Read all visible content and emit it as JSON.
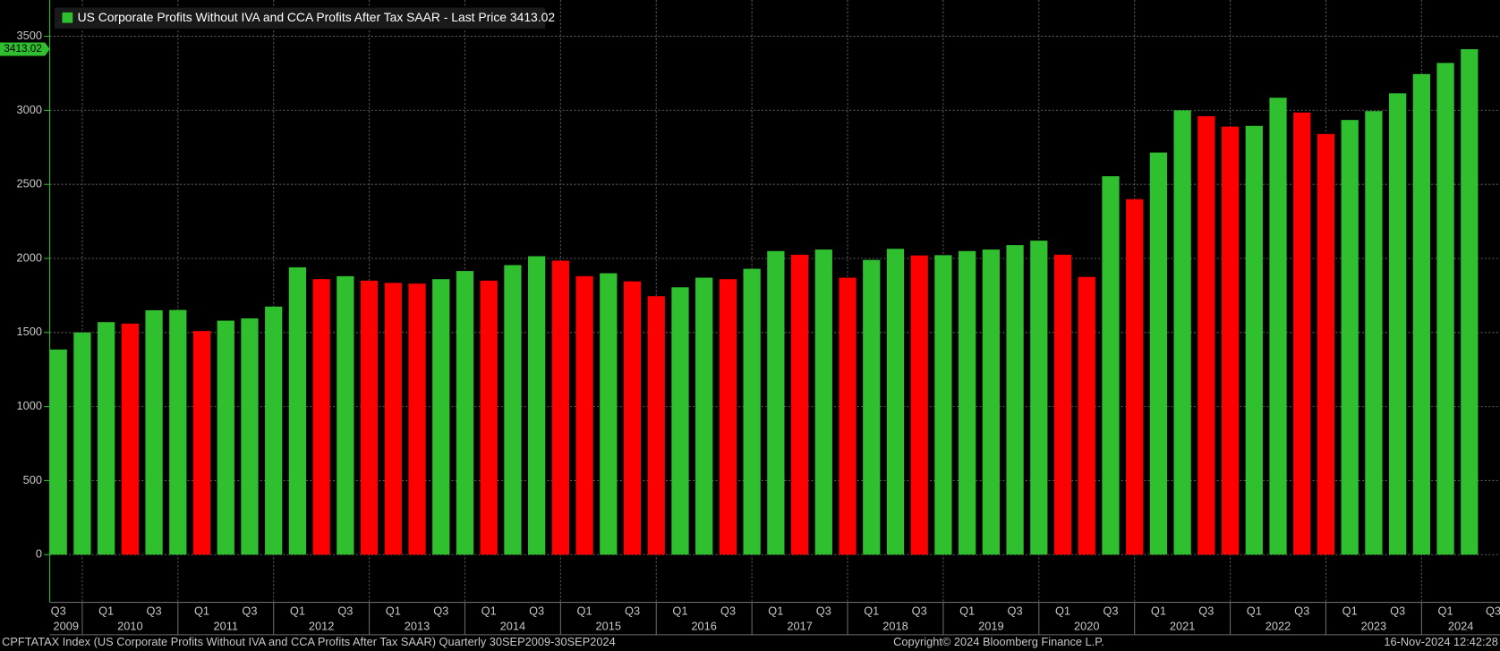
{
  "chart_data": {
    "type": "bar",
    "legend": "US Corporate Profits Without IVA and CCA Profits After Tax SAAR - Last Price 3413.02",
    "categories": [
      "Q3",
      null,
      "Q1",
      null,
      "Q3",
      null,
      "Q1",
      null,
      "Q3",
      null,
      "Q1",
      null,
      "Q3",
      null,
      "Q1",
      null,
      "Q3",
      null,
      "Q1",
      null,
      "Q3",
      null,
      "Q1",
      null,
      "Q3",
      null,
      "Q1",
      null,
      "Q3",
      null,
      "Q1",
      null,
      "Q3",
      null,
      "Q1",
      null,
      "Q3",
      null,
      "Q1",
      null,
      "Q3",
      null,
      "Q1",
      null,
      "Q3",
      null,
      "Q1",
      null,
      "Q3",
      null,
      "Q1",
      null,
      "Q3",
      null,
      "Q1",
      null,
      "Q3",
      null,
      "Q1",
      null,
      "Q3"
    ],
    "year_labels": [
      "2009",
      "2010",
      "2011",
      "2012",
      "2013",
      "2014",
      "2015",
      "2016",
      "2017",
      "2018",
      "2019",
      "2020",
      "2021",
      "2022",
      "2023",
      "2024"
    ],
    "values": [
      1385,
      1500,
      1570,
      1560,
      1650,
      1652,
      1510,
      1580,
      1595,
      1675,
      1940,
      1860,
      1880,
      1850,
      1835,
      1830,
      1860,
      1915,
      1850,
      1955,
      2015,
      1985,
      1880,
      1900,
      1845,
      1745,
      1805,
      1870,
      1860,
      1930,
      2050,
      2025,
      2060,
      1870,
      1990,
      2065,
      2020,
      2022,
      2050,
      2060,
      2090,
      2120,
      2025,
      1875,
      2555,
      2400,
      2715,
      3000,
      2960,
      2890,
      2895,
      3085,
      2985,
      2840,
      2935,
      2995,
      3115,
      3245,
      3320,
      3413.02,
      null
    ],
    "up_color": "#2fbf2f",
    "down_color": "#ff0000",
    "ylim": [
      -322,
      3745
    ],
    "yticks": [
      0,
      500,
      1000,
      1500,
      2000,
      2500,
      3000,
      3500
    ],
    "grid": true
  },
  "footer": {
    "left": "CPFTATAX Index (US Corporate Profits Without IVA and CCA Profits After Tax SAAR)  Quarterly 30SEP2009-30SEP2024",
    "center": "Copyright© 2024 Bloomberg Finance L.P.",
    "right": "16-Nov-2024 12:42:28"
  }
}
